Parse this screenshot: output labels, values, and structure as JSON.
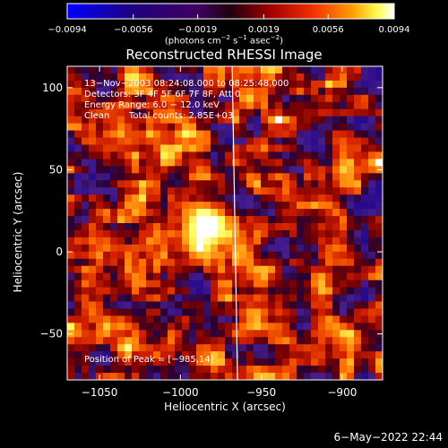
{
  "chart_data": {
    "type": "heatmap",
    "title": "Reconstructed RHESSI Image",
    "xlabel": "Heliocentric X (arcsec)",
    "ylabel": "Heliocentric Y (arcsec)",
    "xlim": [
      -1070,
      -875
    ],
    "ylim": [
      -78,
      113
    ],
    "x_ticks": [
      {
        "value": -1050,
        "label": "−1050"
      },
      {
        "value": -1000,
        "label": "−1000"
      },
      {
        "value": -950,
        "label": "−950"
      },
      {
        "value": -900,
        "label": "−900"
      }
    ],
    "y_ticks": [
      {
        "value": 100,
        "label": "100"
      },
      {
        "value": 50,
        "label": "50"
      },
      {
        "value": 0,
        "label": "0"
      },
      {
        "value": -50,
        "label": "−50"
      }
    ],
    "colorbar": {
      "range": [
        -0.0094,
        0.0094
      ],
      "ticks": [
        {
          "value": -0.0094,
          "label": "−0.0094"
        },
        {
          "value": -0.0056,
          "label": "−0.0056"
        },
        {
          "value": -0.0019,
          "label": "−0.0019"
        },
        {
          "value": 0.0019,
          "label": "0.0019"
        },
        {
          "value": 0.0056,
          "label": "0.0056"
        },
        {
          "value": 0.0094,
          "label": "0.0094"
        }
      ],
      "unit_prefix": "(photons cm",
      "unit_exp1": "−2",
      "unit_mid": " s",
      "unit_exp2": "−1",
      "unit_mid2": " asec",
      "unit_exp3": "−2",
      "unit_suffix": ")"
    },
    "annotations": {
      "time_range": "13−Nov−2003 08:24:08.000 to 08:25:48.000",
      "detectors": "Detectors: 3F 4F 5F 6F 7F 8F, Att 0",
      "energy_range": "Energy Range: 6.0 − 12.0 keV",
      "algorithm": "Clean",
      "total_counts": "Total counts: 2.85E+03",
      "peak": "Position of Peak = [−985,14]"
    },
    "peak_position": [
      -985,
      14
    ],
    "limb_x": -968,
    "grid": false
  },
  "colors": {
    "background": "#000000",
    "text": "#ffffff",
    "colormap": [
      "#0000ff",
      "#200060",
      "#400070",
      "#300030",
      "#800000",
      "#e03000",
      "#ff8000",
      "#ffff60",
      "#ffffff"
    ]
  },
  "footer": {
    "timestamp": "6−May−2022 22:44"
  }
}
